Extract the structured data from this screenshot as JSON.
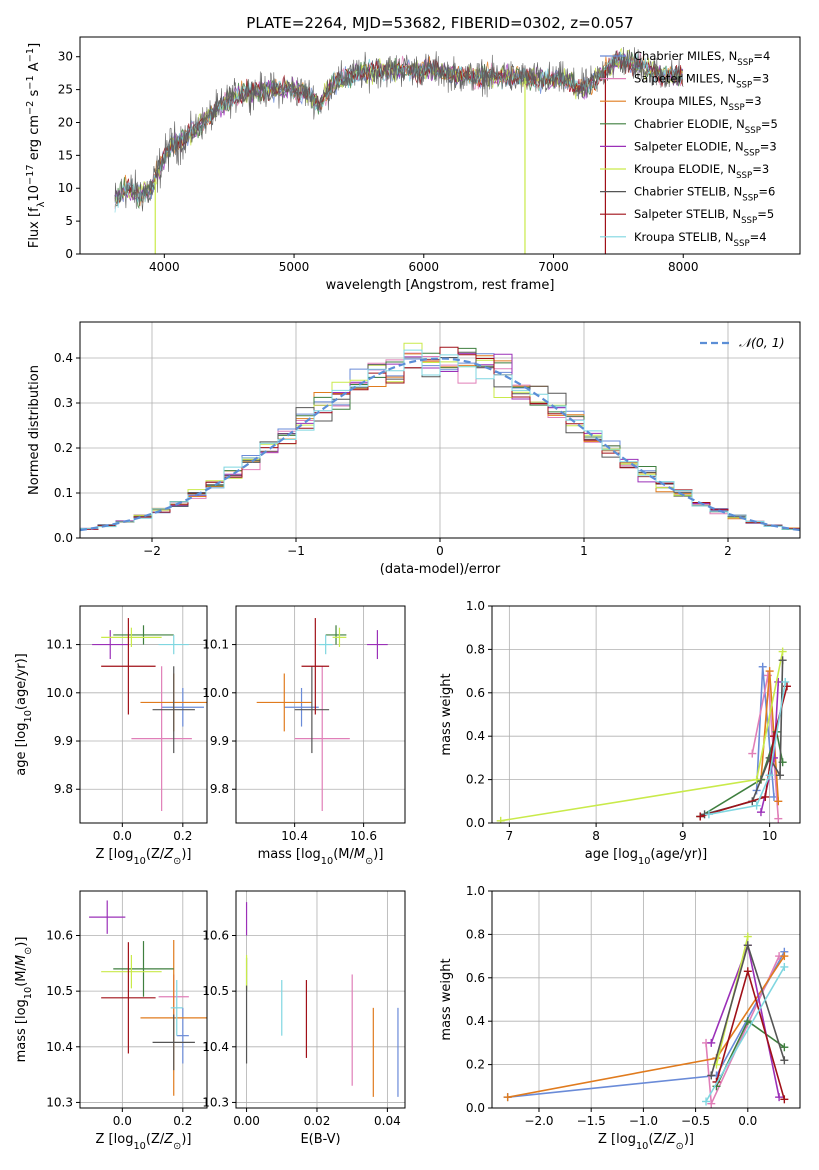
{
  "title": "PLATE=2264, MJD=53682, FIBERID=0302, z=0.057",
  "colors": {
    "chabrier_miles": "#6a8bd8",
    "salpeter_miles": "#e07fb8",
    "kroupa_miles": "#e07b1e",
    "chabrier_elodie": "#3f7f3f",
    "salpeter_elodie": "#9b30b8",
    "kroupa_elodie": "#c9ea4a",
    "chabrier_stelib": "#555555",
    "salpeter_stelib": "#a01018",
    "kroupa_stelib": "#7fd6e0",
    "spectrum": "#606060",
    "normal": "#5b8ed6"
  },
  "chart_data": [
    {
      "id": "spectrum",
      "type": "line",
      "xlabel": "wavelength [Angstrom, rest frame]",
      "ylabel": "Flux [f_λ 10^-17 erg cm^-2 s^-1 A^-1]",
      "xlim": [
        3350,
        8900
      ],
      "ylim": [
        0,
        33
      ],
      "xticks": [
        4000,
        5000,
        6000,
        7000,
        8000
      ],
      "yticks": [
        0,
        5,
        10,
        15,
        20,
        25,
        30
      ],
      "grid": false,
      "legend_position": "right",
      "legend": [
        {
          "key": "chabrier_miles",
          "label": "Chabrier MILES, N",
          "sub": "SSP",
          "tail": "=4"
        },
        {
          "key": "salpeter_miles",
          "label": "Salpeter MILES, N",
          "sub": "SSP",
          "tail": "=3"
        },
        {
          "key": "kroupa_miles",
          "label": "Kroupa MILES, N",
          "sub": "SSP",
          "tail": "=3"
        },
        {
          "key": "chabrier_elodie",
          "label": "Chabrier ELODIE, N",
          "sub": "SSP",
          "tail": "=5"
        },
        {
          "key": "salpeter_elodie",
          "label": "Salpeter ELODIE, N",
          "sub": "SSP",
          "tail": "=3"
        },
        {
          "key": "kroupa_elodie",
          "label": "Kroupa ELODIE, N",
          "sub": "SSP",
          "tail": "=3"
        },
        {
          "key": "chabrier_stelib",
          "label": "Chabrier STELIB, N",
          "sub": "SSP",
          "tail": "=6"
        },
        {
          "key": "salpeter_stelib",
          "label": "Salpeter STELIB, N",
          "sub": "SSP",
          "tail": "=5"
        },
        {
          "key": "kroupa_stelib",
          "label": "Kroupa STELIB, N",
          "sub": "SSP",
          "tail": "=4"
        }
      ],
      "continuum": [
        [
          3620,
          8
        ],
        [
          3700,
          10
        ],
        [
          3800,
          9
        ],
        [
          3900,
          10
        ],
        [
          3960,
          13
        ],
        [
          4050,
          16.5
        ],
        [
          4150,
          17.5
        ],
        [
          4300,
          20
        ],
        [
          4400,
          22
        ],
        [
          4500,
          23.5
        ],
        [
          4600,
          24.5
        ],
        [
          4800,
          25
        ],
        [
          5000,
          25
        ],
        [
          5100,
          24.5
        ],
        [
          5200,
          23
        ],
        [
          5300,
          26
        ],
        [
          5500,
          27.5
        ],
        [
          5700,
          28
        ],
        [
          5900,
          28
        ],
        [
          6100,
          28
        ],
        [
          6300,
          27
        ],
        [
          6500,
          27
        ],
        [
          6700,
          27
        ],
        [
          6900,
          26.5
        ],
        [
          7100,
          26.5
        ],
        [
          7200,
          25
        ],
        [
          7300,
          26
        ],
        [
          7400,
          28
        ],
        [
          7500,
          29.5
        ],
        [
          7600,
          29
        ],
        [
          7700,
          28.5
        ],
        [
          7800,
          27.5
        ],
        [
          7900,
          27
        ],
        [
          8000,
          27
        ]
      ],
      "sky_lines": [
        3930,
        6780,
        7400
      ],
      "sky_line_colors": [
        "kroupa_elodie",
        "kroupa_elodie",
        "salpeter_stelib"
      ]
    },
    {
      "id": "residuals",
      "type": "bar",
      "xlabel": "(data-model)/error",
      "ylabel": "Normed distribution",
      "xlim": [
        -2.5,
        2.5
      ],
      "ylim": [
        0,
        0.48
      ],
      "xticks": [
        -2,
        -1,
        0,
        1,
        2
      ],
      "yticks": [
        0.0,
        0.1,
        0.2,
        0.3,
        0.4
      ],
      "grid": true,
      "legend_position": "upper right",
      "legend": [
        {
          "key": "normal",
          "label": "𝒩(0, 1)"
        }
      ]
    },
    {
      "id": "age_vs_Z",
      "type": "scatter",
      "xlabel": "Z [log10(Z/Z⊙)]",
      "ylabel": "age  [log10(age/yr)]",
      "xlim": [
        -0.14,
        0.28
      ],
      "ylim": [
        9.73,
        10.18
      ],
      "xticks": [
        0.0,
        0.2
      ],
      "yticks": [
        9.8,
        9.9,
        10.0,
        10.1
      ],
      "grid": true,
      "points": [
        {
          "key": "chabrier_miles",
          "x": 0.2,
          "y": 9.97,
          "xerr": 0.07,
          "yerr": 0.04
        },
        {
          "key": "salpeter_miles",
          "x": 0.13,
          "y": 9.905,
          "xerr": 0.1,
          "yerr": 0.15
        },
        {
          "key": "kroupa_miles",
          "x": 0.17,
          "y": 9.98,
          "xerr": 0.11,
          "yerr": 0.06
        },
        {
          "key": "chabrier_elodie",
          "x": 0.07,
          "y": 10.12,
          "xerr": 0.1,
          "yerr": 0.02
        },
        {
          "key": "salpeter_elodie",
          "x": -0.04,
          "y": 10.1,
          "xerr": 0.06,
          "yerr": 0.03
        },
        {
          "key": "kroupa_elodie",
          "x": 0.03,
          "y": 10.115,
          "xerr": 0.1,
          "yerr": 0.02
        },
        {
          "key": "chabrier_stelib",
          "x": 0.17,
          "y": 9.965,
          "xerr": 0.07,
          "yerr": 0.09
        },
        {
          "key": "salpeter_stelib",
          "x": 0.02,
          "y": 10.055,
          "xerr": 0.09,
          "yerr": 0.1
        },
        {
          "key": "kroupa_stelib",
          "x": 0.17,
          "y": 10.1,
          "xerr": 0.05,
          "yerr": 0.02
        }
      ]
    },
    {
      "id": "age_vs_mass",
      "type": "scatter",
      "xlabel": "mass [log10(M/M⊙)]",
      "ylabel": "",
      "xlim": [
        10.23,
        10.72
      ],
      "ylim": [
        9.73,
        10.18
      ],
      "xticks": [
        10.4,
        10.6
      ],
      "yticks": [
        9.8,
        9.9,
        10.0,
        10.1
      ],
      "grid": true,
      "points": [
        {
          "key": "chabrier_miles",
          "x": 10.42,
          "y": 9.97,
          "xerr": 0.05,
          "yerr": 0.04
        },
        {
          "key": "salpeter_miles",
          "x": 10.48,
          "y": 9.905,
          "xerr": 0.08,
          "yerr": 0.15
        },
        {
          "key": "kroupa_miles",
          "x": 10.37,
          "y": 9.98,
          "xerr": 0.08,
          "yerr": 0.06
        },
        {
          "key": "chabrier_elodie",
          "x": 10.52,
          "y": 10.12,
          "xerr": 0.03,
          "yerr": 0.02
        },
        {
          "key": "salpeter_elodie",
          "x": 10.64,
          "y": 10.1,
          "xerr": 0.03,
          "yerr": 0.03
        },
        {
          "key": "kroupa_elodie",
          "x": 10.53,
          "y": 10.115,
          "xerr": 0.02,
          "yerr": 0.02
        },
        {
          "key": "chabrier_stelib",
          "x": 10.45,
          "y": 9.965,
          "xerr": 0.05,
          "yerr": 0.09
        },
        {
          "key": "salpeter_stelib",
          "x": 10.46,
          "y": 10.055,
          "xerr": 0.04,
          "yerr": 0.1
        },
        {
          "key": "kroupa_stelib",
          "x": 10.49,
          "y": 10.1,
          "xerr": 0.02,
          "yerr": 0.02
        }
      ]
    },
    {
      "id": "weight_vs_age",
      "type": "line",
      "xlabel": "age  [log10(age/yr)]",
      "ylabel": "mass weight",
      "xlim": [
        6.8,
        10.35
      ],
      "ylim": [
        0,
        1.0
      ],
      "xticks": [
        7,
        8,
        9,
        10
      ],
      "yticks": [
        0.0,
        0.2,
        0.4,
        0.6,
        0.8,
        1.0
      ],
      "grid": true,
      "series": [
        {
          "key": "chabrier_miles",
          "x": [
            9.85,
            9.92,
            10.05
          ],
          "y": [
            0.15,
            0.72,
            0.12
          ]
        },
        {
          "key": "salpeter_miles",
          "x": [
            9.8,
            9.98,
            10.1
          ],
          "y": [
            0.32,
            0.68,
            0.02
          ]
        },
        {
          "key": "kroupa_miles",
          "x": [
            9.9,
            10.0,
            10.1
          ],
          "y": [
            0.2,
            0.7,
            0.1
          ]
        },
        {
          "key": "chabrier_elodie",
          "x": [
            9.2,
            9.9,
            10.08,
            10.15
          ],
          "y": [
            0.03,
            0.2,
            0.42,
            0.28
          ]
        },
        {
          "key": "salpeter_elodie",
          "x": [
            9.9,
            10.05,
            10.1
          ],
          "y": [
            0.05,
            0.3,
            0.65
          ]
        },
        {
          "key": "kroupa_elodie",
          "x": [
            6.9,
            9.85,
            10.15
          ],
          "y": [
            0.01,
            0.2,
            0.79
          ]
        },
        {
          "key": "chabrier_stelib",
          "x": [
            9.25,
            9.8,
            10.0,
            10.12,
            10.15
          ],
          "y": [
            0.04,
            0.1,
            0.3,
            0.22,
            0.75
          ]
        },
        {
          "key": "salpeter_stelib",
          "x": [
            9.2,
            9.95,
            10.05,
            10.2
          ],
          "y": [
            0.03,
            0.12,
            0.4,
            0.63
          ]
        },
        {
          "key": "kroupa_stelib",
          "x": [
            9.3,
            9.85,
            10.0,
            10.18
          ],
          "y": [
            0.04,
            0.08,
            0.22,
            0.65
          ]
        }
      ]
    },
    {
      "id": "mass_vs_Z",
      "type": "scatter",
      "xlabel": "Z [log10(Z/Z⊙)]",
      "ylabel": "mass [log10(M/M⊙)]",
      "xlim": [
        -0.14,
        0.28
      ],
      "ylim": [
        10.29,
        10.68
      ],
      "xticks": [
        0.0,
        0.2
      ],
      "yticks": [
        10.3,
        10.4,
        10.5,
        10.6
      ],
      "grid": true,
      "points": [
        {
          "key": "chabrier_miles",
          "x": 0.2,
          "y": 10.42,
          "xerr": 0.02,
          "yerr": 0.05
        },
        {
          "key": "salpeter_miles",
          "x": 0.17,
          "y": 10.49,
          "xerr": 0.05,
          "yerr": 0.04
        },
        {
          "key": "kroupa_miles",
          "x": 0.17,
          "y": 10.452,
          "xerr": 0.11,
          "yerr": 0.14
        },
        {
          "key": "chabrier_elodie",
          "x": 0.07,
          "y": 10.54,
          "xerr": 0.1,
          "yerr": 0.05
        },
        {
          "key": "salpeter_elodie",
          "x": -0.05,
          "y": 10.633,
          "xerr": 0.06,
          "yerr": 0.03
        },
        {
          "key": "kroupa_elodie",
          "x": 0.03,
          "y": 10.535,
          "xerr": 0.1,
          "yerr": 0.03
        },
        {
          "key": "chabrier_stelib",
          "x": 0.17,
          "y": 10.408,
          "xerr": 0.07,
          "yerr": 0.05
        },
        {
          "key": "salpeter_stelib",
          "x": 0.02,
          "y": 10.488,
          "xerr": 0.09,
          "yerr": 0.1
        },
        {
          "key": "kroupa_stelib",
          "x": 0.18,
          "y": 10.47,
          "xerr": 0.02,
          "yerr": 0.05
        }
      ]
    },
    {
      "id": "mass_vs_ebv",
      "type": "scatter",
      "xlabel": "E(B-V)",
      "ylabel": "",
      "xlim": [
        -0.003,
        0.045
      ],
      "ylim": [
        10.29,
        10.68
      ],
      "xticks": [
        0.0,
        0.02,
        0.04
      ],
      "yticks": [
        10.3,
        10.4,
        10.5,
        10.6
      ],
      "grid": true,
      "points": [
        {
          "key": "chabrier_miles",
          "x": 0.043,
          "y": 10.39,
          "xerr": 0,
          "yerr": 0.08
        },
        {
          "key": "salpeter_miles",
          "x": 0.03,
          "y": 10.43,
          "xerr": 0,
          "yerr": 0.1
        },
        {
          "key": "kroupa_miles",
          "x": 0.036,
          "y": 10.39,
          "xerr": 0,
          "yerr": 0.08
        },
        {
          "key": "chabrier_elodie",
          "x": 0.0,
          "y": 10.53,
          "xerr": 0,
          "yerr": 0.03
        },
        {
          "key": "salpeter_elodie",
          "x": 0.0,
          "y": 10.63,
          "xerr": 0,
          "yerr": 0.03
        },
        {
          "key": "kroupa_elodie",
          "x": 0.0,
          "y": 10.535,
          "xerr": 0,
          "yerr": 0.03
        },
        {
          "key": "chabrier_stelib",
          "x": 0.0,
          "y": 10.44,
          "xerr": 0,
          "yerr": 0.07
        },
        {
          "key": "salpeter_stelib",
          "x": 0.017,
          "y": 10.45,
          "xerr": 0,
          "yerr": 0.07
        },
        {
          "key": "kroupa_stelib",
          "x": 0.01,
          "y": 10.47,
          "xerr": 0,
          "yerr": 0.05
        }
      ]
    },
    {
      "id": "weight_vs_Z",
      "type": "line",
      "xlabel": "Z [log10(Z/Z⊙)]",
      "ylabel": "mass weight",
      "xlim": [
        -2.45,
        0.5
      ],
      "ylim": [
        0,
        1.0
      ],
      "xticks": [
        -2.0,
        -1.5,
        -1.0,
        -0.5,
        0.0
      ],
      "yticks": [
        0.0,
        0.2,
        0.4,
        0.6,
        0.8,
        1.0
      ],
      "grid": true,
      "series": [
        {
          "key": "chabrier_miles",
          "x": [
            -2.3,
            -0.3,
            0.35
          ],
          "y": [
            0.05,
            0.15,
            0.72
          ]
        },
        {
          "key": "salpeter_miles",
          "x": [
            -0.4,
            -0.35,
            0.3
          ],
          "y": [
            0.3,
            0.02,
            0.7
          ]
        },
        {
          "key": "kroupa_miles",
          "x": [
            -2.3,
            -0.3,
            0.35
          ],
          "y": [
            0.05,
            0.23,
            0.7
          ]
        },
        {
          "key": "chabrier_elodie",
          "x": [
            -0.3,
            0.0,
            0.35
          ],
          "y": [
            0.1,
            0.4,
            0.28
          ]
        },
        {
          "key": "salpeter_elodie",
          "x": [
            -0.35,
            0.0,
            0.3
          ],
          "y": [
            0.3,
            0.75,
            0.05
          ]
        },
        {
          "key": "kroupa_elodie",
          "x": [
            -0.3,
            0.0
          ],
          "y": [
            0.2,
            0.79
          ]
        },
        {
          "key": "chabrier_stelib",
          "x": [
            -0.35,
            0.0,
            0.35
          ],
          "y": [
            0.15,
            0.75,
            0.22
          ]
        },
        {
          "key": "salpeter_stelib",
          "x": [
            -0.3,
            0.0,
            0.35
          ],
          "y": [
            0.12,
            0.63,
            0.04
          ]
        },
        {
          "key": "kroupa_stelib",
          "x": [
            -0.4,
            0.35
          ],
          "y": [
            0.03,
            0.65
          ]
        }
      ]
    }
  ]
}
